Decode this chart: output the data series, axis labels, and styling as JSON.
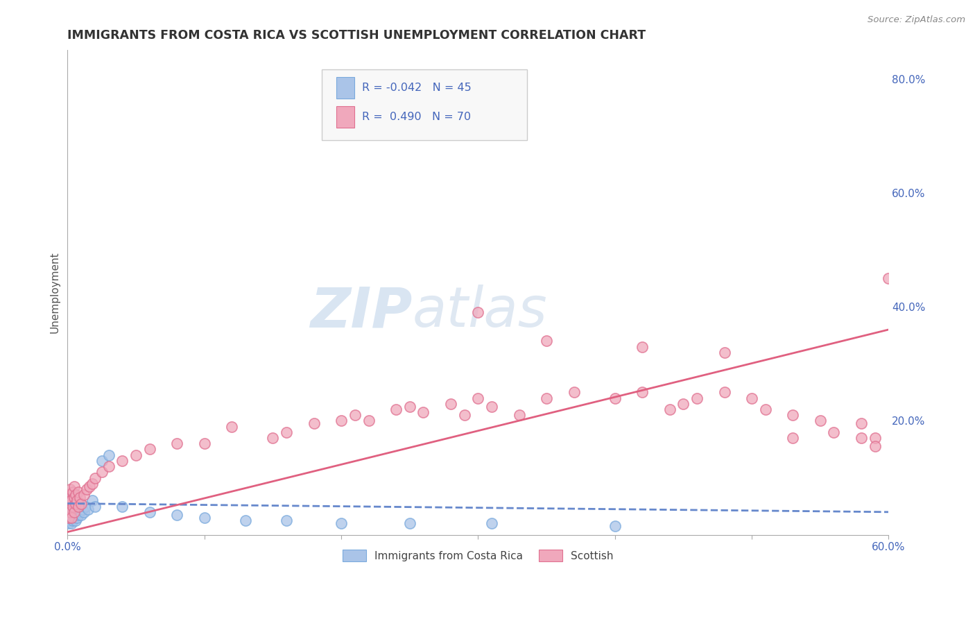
{
  "title": "IMMIGRANTS FROM COSTA RICA VS SCOTTISH UNEMPLOYMENT CORRELATION CHART",
  "source": "Source: ZipAtlas.com",
  "ylabel": "Unemployment",
  "xlim": [
    0.0,
    0.6
  ],
  "ylim": [
    0.0,
    0.85
  ],
  "blue_color": "#aac4e8",
  "pink_color": "#f0a8bc",
  "blue_edge_color": "#7aaadd",
  "pink_edge_color": "#e07090",
  "blue_line_color": "#6688cc",
  "pink_line_color": "#e06080",
  "legend_text_color": "#4466bb",
  "title_color": "#333333",
  "grid_color": "#cccccc",
  "background_color": "#ffffff",
  "watermark_zip": "ZIP",
  "watermark_atlas": "atlas",
  "blue_trend_start_y": 0.055,
  "blue_trend_end_y": 0.04,
  "pink_trend_start_y": 0.005,
  "pink_trend_end_y": 0.36,
  "blue_x": [
    0.001,
    0.001,
    0.001,
    0.001,
    0.002,
    0.002,
    0.002,
    0.002,
    0.003,
    0.003,
    0.003,
    0.003,
    0.004,
    0.004,
    0.004,
    0.005,
    0.005,
    0.005,
    0.006,
    0.006,
    0.006,
    0.007,
    0.007,
    0.008,
    0.008,
    0.009,
    0.01,
    0.011,
    0.012,
    0.013,
    0.015,
    0.018,
    0.02,
    0.025,
    0.03,
    0.04,
    0.06,
    0.08,
    0.1,
    0.13,
    0.16,
    0.2,
    0.25,
    0.31,
    0.4
  ],
  "blue_y": [
    0.02,
    0.03,
    0.04,
    0.055,
    0.025,
    0.035,
    0.045,
    0.06,
    0.02,
    0.03,
    0.05,
    0.065,
    0.025,
    0.04,
    0.06,
    0.03,
    0.045,
    0.055,
    0.025,
    0.04,
    0.06,
    0.03,
    0.05,
    0.035,
    0.055,
    0.04,
    0.035,
    0.045,
    0.04,
    0.05,
    0.045,
    0.06,
    0.05,
    0.13,
    0.14,
    0.05,
    0.04,
    0.035,
    0.03,
    0.025,
    0.025,
    0.02,
    0.02,
    0.02,
    0.015
  ],
  "pink_x": [
    0.001,
    0.001,
    0.001,
    0.002,
    0.002,
    0.002,
    0.003,
    0.003,
    0.004,
    0.004,
    0.005,
    0.005,
    0.005,
    0.006,
    0.006,
    0.007,
    0.008,
    0.008,
    0.009,
    0.01,
    0.012,
    0.014,
    0.016,
    0.018,
    0.02,
    0.025,
    0.03,
    0.04,
    0.05,
    0.06,
    0.08,
    0.1,
    0.12,
    0.15,
    0.16,
    0.18,
    0.2,
    0.21,
    0.22,
    0.24,
    0.25,
    0.26,
    0.28,
    0.29,
    0.3,
    0.31,
    0.33,
    0.35,
    0.37,
    0.4,
    0.42,
    0.44,
    0.45,
    0.46,
    0.48,
    0.5,
    0.51,
    0.53,
    0.55,
    0.56,
    0.58,
    0.59,
    0.6,
    0.3,
    0.35,
    0.42,
    0.48,
    0.53,
    0.58,
    0.59
  ],
  "pink_y": [
    0.03,
    0.05,
    0.07,
    0.04,
    0.06,
    0.08,
    0.03,
    0.06,
    0.05,
    0.075,
    0.04,
    0.065,
    0.085,
    0.055,
    0.07,
    0.06,
    0.05,
    0.075,
    0.065,
    0.055,
    0.07,
    0.08,
    0.085,
    0.09,
    0.1,
    0.11,
    0.12,
    0.13,
    0.14,
    0.15,
    0.16,
    0.16,
    0.19,
    0.17,
    0.18,
    0.195,
    0.2,
    0.21,
    0.2,
    0.22,
    0.225,
    0.215,
    0.23,
    0.21,
    0.24,
    0.225,
    0.21,
    0.24,
    0.25,
    0.24,
    0.25,
    0.22,
    0.23,
    0.24,
    0.25,
    0.24,
    0.22,
    0.21,
    0.2,
    0.18,
    0.195,
    0.17,
    0.45,
    0.39,
    0.34,
    0.33,
    0.32,
    0.17,
    0.17,
    0.155
  ]
}
